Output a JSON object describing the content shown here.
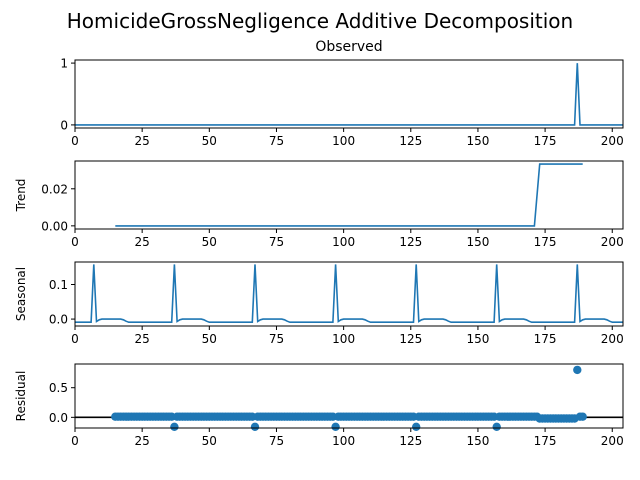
{
  "figure": {
    "title": "HomicideGrossNegligence Additive Decomposition"
  },
  "colors": {
    "series": "#1f77b4",
    "axis": "#000000",
    "baseline": "#000000"
  },
  "chart_data": [
    {
      "type": "line",
      "title": "Observed",
      "ylabel": "",
      "xlim": [
        0,
        204
      ],
      "ylim": [
        -0.05,
        1.05
      ],
      "xticks": [
        "0",
        "25",
        "50",
        "75",
        "100",
        "125",
        "150",
        "175",
        "200"
      ],
      "yticks": [
        "0",
        "1"
      ],
      "ytick_values": [
        0,
        1
      ],
      "series": [
        {
          "x": [
            0,
            186,
            187,
            188,
            204
          ],
          "y": [
            0,
            0,
            1,
            0,
            0
          ]
        }
      ]
    },
    {
      "type": "line",
      "title": "",
      "ylabel": "Trend",
      "xlim": [
        0,
        204
      ],
      "ylim": [
        -0.0017,
        0.035
      ],
      "xticks": [
        "0",
        "25",
        "50",
        "75",
        "100",
        "125",
        "150",
        "175",
        "200"
      ],
      "yticks": [
        "0.00",
        "0.02"
      ],
      "ytick_values": [
        0,
        0.02
      ],
      "series": [
        {
          "x": [
            15,
            171,
            173,
            189
          ],
          "y": [
            0,
            0,
            0.0333,
            0.0333
          ]
        }
      ]
    },
    {
      "type": "line",
      "title": "",
      "ylabel": "Seasonal",
      "xlim": [
        0,
        204
      ],
      "ylim": [
        -0.02,
        0.165
      ],
      "xticks": [
        "0",
        "25",
        "50",
        "75",
        "100",
        "125",
        "150",
        "175",
        "200"
      ],
      "yticks": [
        "0.1",
        "0.0"
      ],
      "ytick_values": [
        0.1,
        0.0
      ],
      "period": 30,
      "first_peak_x": 7,
      "season_profile": [
        0.158,
        -0.007,
        -0.002,
        0,
        0,
        0,
        0,
        0,
        0,
        0,
        0,
        -0.002,
        -0.006,
        -0.009,
        -0.009,
        -0.009,
        -0.009,
        -0.009,
        -0.009,
        -0.009,
        -0.009,
        -0.009,
        -0.009,
        -0.009,
        -0.009,
        -0.009,
        -0.009,
        -0.009,
        -0.009,
        -0.009
      ]
    },
    {
      "type": "scatter",
      "title": "",
      "ylabel": "Residual",
      "xlim": [
        0,
        204
      ],
      "ylim": [
        -0.18,
        0.9
      ],
      "xticks": [
        "0",
        "25",
        "50",
        "75",
        "100",
        "125",
        "150",
        "175",
        "200"
      ],
      "yticks": [
        "0.5",
        "0.0"
      ],
      "ytick_values": [
        0.5,
        0.0
      ],
      "baseline": 0,
      "x_range": [
        15,
        189
      ],
      "default_value": 0.01,
      "low_points": {
        "x": [
          37,
          67,
          97,
          127,
          157
        ],
        "y": [
          -0.16,
          -0.16,
          -0.16,
          -0.16,
          -0.16
        ]
      },
      "tail_range": [
        173,
        186
      ],
      "tail_value": -0.02,
      "high_point": {
        "x": 187,
        "y": 0.8
      }
    }
  ]
}
